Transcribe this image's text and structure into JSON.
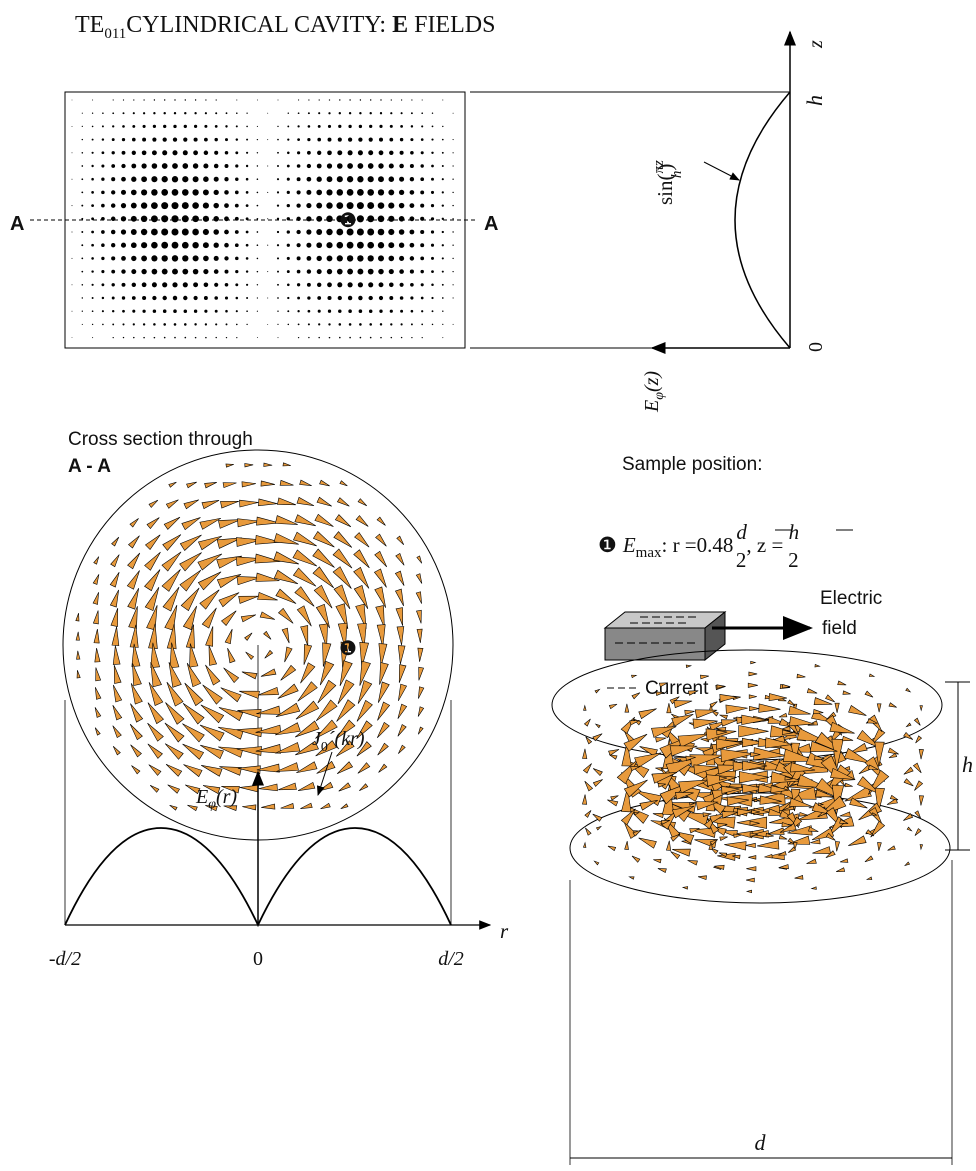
{
  "title": {
    "prefix": "TE",
    "subscript": "011",
    "middle": "CYLINDRICAL CAVITY: ",
    "bold": "E",
    "suffix": " FIELDS"
  },
  "side_view": {
    "section_left": "A",
    "section_right": "A",
    "marker": "❶",
    "z_axis": "z",
    "top_label": "h",
    "bottom_label": "0",
    "curve_label": {
      "func": "sin(",
      "num": "πz",
      "den": "h",
      "close": ")"
    },
    "field_axis": {
      "symbol": "E",
      "sub": "φ",
      "arg": "(z)"
    }
  },
  "cross_section": {
    "caption_1": "Cross section through",
    "caption_2": "A - A",
    "marker": "❶"
  },
  "sample": {
    "heading": "Sample position:",
    "marker": "❶",
    "symbol": "E",
    "sub": "max",
    "r_part": ": r =0.48",
    "r_num": "d",
    "r_den": "2",
    "z_part": ", z = ",
    "z_num": "h",
    "z_den": "2"
  },
  "legend": {
    "field_1": "Electric",
    "field_2": "field",
    "current": "Current"
  },
  "radial_plot": {
    "axis_label": {
      "symbol": "E",
      "sub": "φ",
      "arg": "(r)"
    },
    "curve_label": {
      "name": "J",
      "sub": "0",
      "rest": "´(kr)"
    },
    "ticks": [
      "-d/2",
      "0",
      "d/2"
    ],
    "r_axis": "r"
  },
  "cylinder_3d": {
    "height": "h",
    "diameter": "d"
  }
}
